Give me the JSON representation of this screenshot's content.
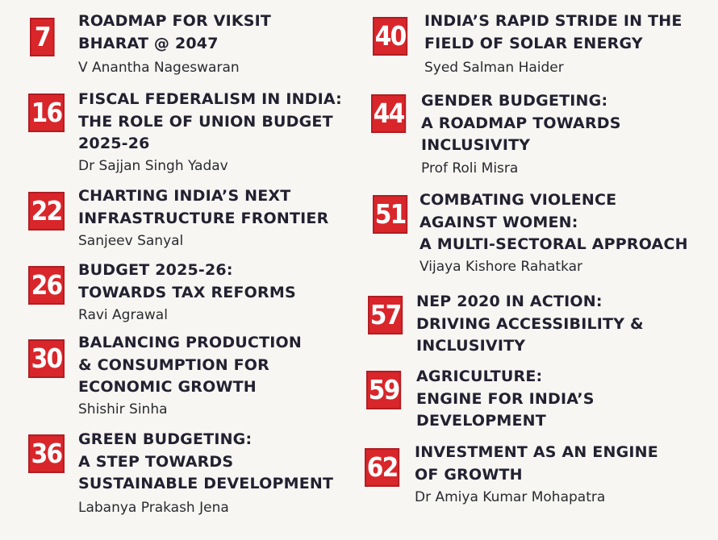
{
  "left": [
    {
      "number": "7",
      "title": [
        "ROADMAP FOR VIKSIT",
        "BHARAT @ 2047"
      ],
      "author": "V Anantha Nageswaran"
    },
    {
      "number": "16",
      "title": [
        "FISCAL FEDERALISM IN INDIA:",
        "THE ROLE OF UNION BUDGET",
        "2025-26"
      ],
      "author": "Dr Sajjan Singh Yadav"
    },
    {
      "number": "22",
      "title": [
        "CHARTING INDIA’S NEXT",
        "INFRASTRUCTURE FRONTIER"
      ],
      "author": "Sanjeev Sanyal"
    },
    {
      "number": "26",
      "title": [
        "BUDGET 2025-26:",
        "TOWARDS TAX REFORMS"
      ],
      "author": "Ravi Agrawal"
    },
    {
      "number": "30",
      "title": [
        "BALANCING PRODUCTION",
        "& CONSUMPTION FOR",
        "ECONOMIC GROWTH"
      ],
      "author": "Shishir Sinha"
    },
    {
      "number": "36",
      "title": [
        "GREEN BUDGETING:",
        "A STEP TOWARDS",
        "SUSTAINABLE DEVELOPMENT"
      ],
      "author": "Labanya Prakash Jena"
    }
  ],
  "right": [
    {
      "number": "40",
      "title": [
        "INDIA’S RAPID STRIDE IN THE",
        "FIELD OF SOLAR ENERGY"
      ],
      "author": "Syed Salman Haider"
    },
    {
      "number": "44",
      "title": [
        "GENDER BUDGETING:",
        "A ROADMAP TOWARDS",
        "INCLUSIVITY"
      ],
      "author": "Prof Roli Misra"
    },
    {
      "number": "51",
      "title": [
        "COMBATING VIOLENCE",
        "AGAINST WOMEN:",
        "A MULTI-SECTORAL APPROACH"
      ],
      "author": "Vijaya Kishore Rahatkar"
    },
    {
      "number": "57",
      "title": [
        "NEP 2020 IN ACTION:",
        "DRIVING ACCESSIBILITY &",
        "INCLUSIVITY"
      ],
      "author": ""
    },
    {
      "number": "59",
      "title": [
        "AGRICULTURE:",
        "ENGINE FOR INDIA’S",
        "DEVELOPMENT"
      ],
      "author": ""
    },
    {
      "number": "62",
      "title": [
        "INVESTMENT AS AN ENGINE",
        "OF GROWTH"
      ],
      "author": "Dr Amiya Kumar Mohapatra"
    }
  ],
  "colors": {
    "badge": "#d8262b",
    "title": "#232130",
    "author": "#2a2a30",
    "background": "#f7f6f3"
  }
}
